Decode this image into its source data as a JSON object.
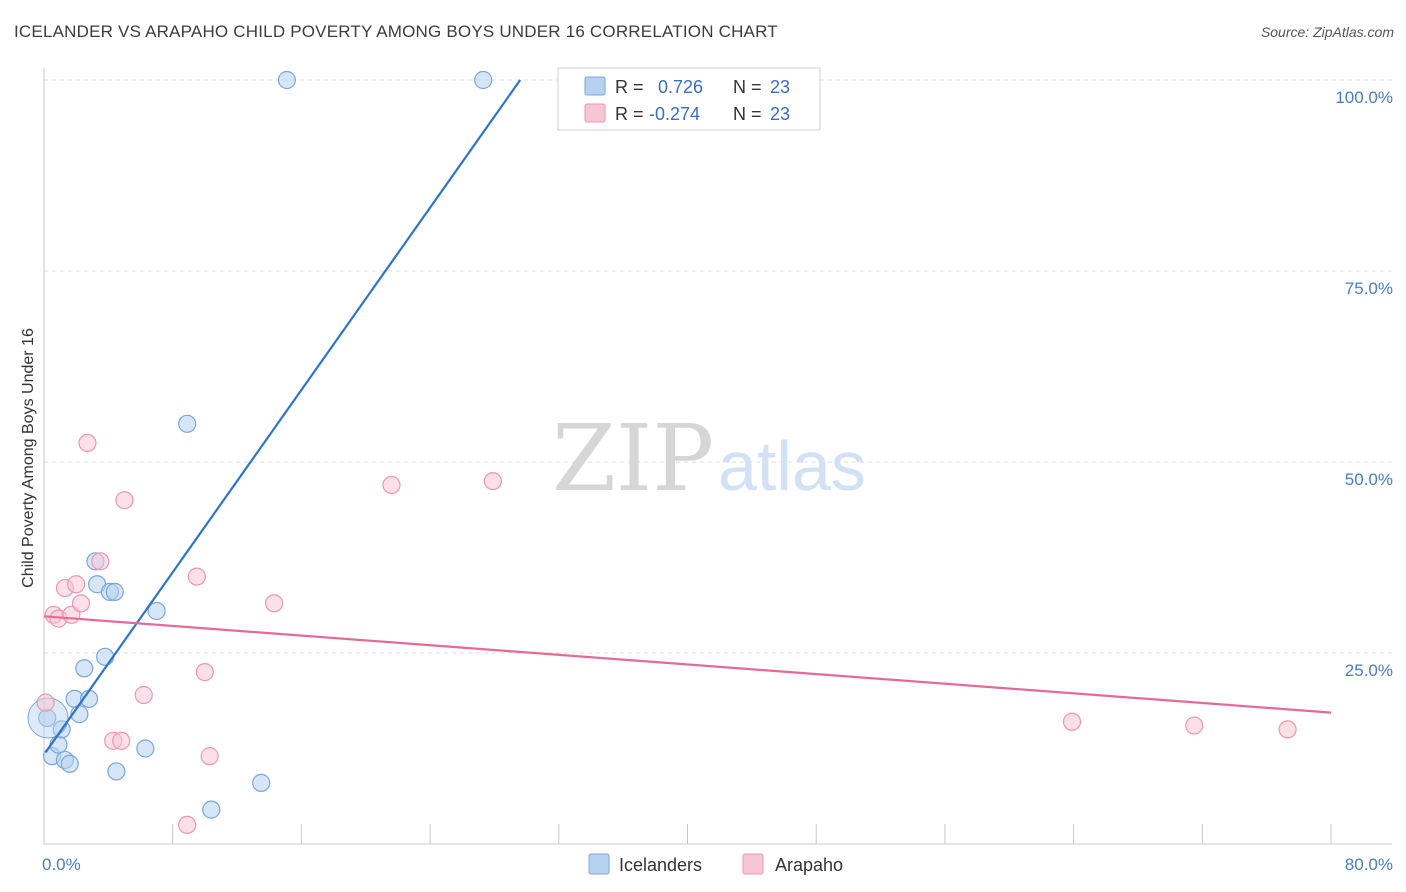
{
  "title": "ICELANDER VS ARAPAHO CHILD POVERTY AMONG BOYS UNDER 16 CORRELATION CHART",
  "source": "Source: ZipAtlas.com",
  "watermark": {
    "zip": "ZIP",
    "atlas": "atlas"
  },
  "colors": {
    "blue_fill": "#b7d1f1",
    "blue_stroke": "#7aa6dc",
    "blue_line": "#2f74c9",
    "pink_fill": "#f7c6d5",
    "pink_stroke": "#eb97b3",
    "pink_line": "#e46b97",
    "grid": "#dcdcdc",
    "tick_text": "#4a7cc4"
  },
  "legend": {
    "rows": [
      {
        "r_label": "R =",
        "r_value": "0.726",
        "n_label": "N =",
        "n_value": "23"
      },
      {
        "r_label": "R =",
        "r_value": "-0.274",
        "n_label": "N =",
        "n_value": "23"
      }
    ]
  },
  "chart_data": {
    "type": "scatter",
    "title": "ICELANDER VS ARAPAHO CHILD POVERTY AMONG BOYS UNDER 16 CORRELATION CHART",
    "xlabel": "",
    "ylabel": "Child Poverty Among Boys Under 16",
    "xlim": [
      0,
      80
    ],
    "ylim": [
      0,
      100
    ],
    "x_tick_labels": [
      "0.0%",
      "80.0%"
    ],
    "y_ticks": [
      25,
      50,
      75,
      100
    ],
    "y_tick_labels": [
      "25.0%",
      "50.0%",
      "75.0%",
      "100.0%"
    ],
    "series": [
      {
        "name": "Icelanders",
        "points": [
          [
            0.2,
            16.5
          ],
          [
            0.5,
            11.5
          ],
          [
            0.9,
            13
          ],
          [
            1.1,
            15
          ],
          [
            1.3,
            11
          ],
          [
            1.6,
            10.5
          ],
          [
            1.9,
            19
          ],
          [
            2.2,
            17
          ],
          [
            2.5,
            23
          ],
          [
            2.8,
            19
          ],
          [
            3.2,
            37
          ],
          [
            3.3,
            34
          ],
          [
            3.8,
            24.5
          ],
          [
            4.1,
            33
          ],
          [
            4.4,
            33
          ],
          [
            4.5,
            9.5
          ],
          [
            6.3,
            12.5
          ],
          [
            7.0,
            30.5
          ],
          [
            8.9,
            55
          ],
          [
            10.4,
            4.5
          ],
          [
            13.5,
            8
          ],
          [
            15.1,
            100
          ],
          [
            27.3,
            100
          ]
        ],
        "trend": {
          "x": [
            0.1,
            29.6
          ],
          "y": [
            12.0,
            100.0
          ]
        }
      },
      {
        "name": "Arapaho",
        "points": [
          [
            0.1,
            18.5
          ],
          [
            0.6,
            30
          ],
          [
            0.9,
            29.5
          ],
          [
            1.3,
            33.5
          ],
          [
            1.7,
            30
          ],
          [
            2.0,
            34
          ],
          [
            2.3,
            31.5
          ],
          [
            2.7,
            52.5
          ],
          [
            3.5,
            37
          ],
          [
            4.3,
            13.5
          ],
          [
            4.8,
            13.5
          ],
          [
            5.0,
            45
          ],
          [
            6.2,
            19.5
          ],
          [
            8.9,
            2.5
          ],
          [
            9.5,
            35
          ],
          [
            10.0,
            22.5
          ],
          [
            10.3,
            11.5
          ],
          [
            14.3,
            31.5
          ],
          [
            21.6,
            47
          ],
          [
            27.9,
            47.5
          ],
          [
            63.9,
            16
          ],
          [
            71.5,
            15.5
          ],
          [
            77.3,
            15
          ]
        ],
        "trend": {
          "x": [
            0,
            80
          ],
          "y": [
            29.8,
            17.2
          ]
        }
      }
    ]
  }
}
